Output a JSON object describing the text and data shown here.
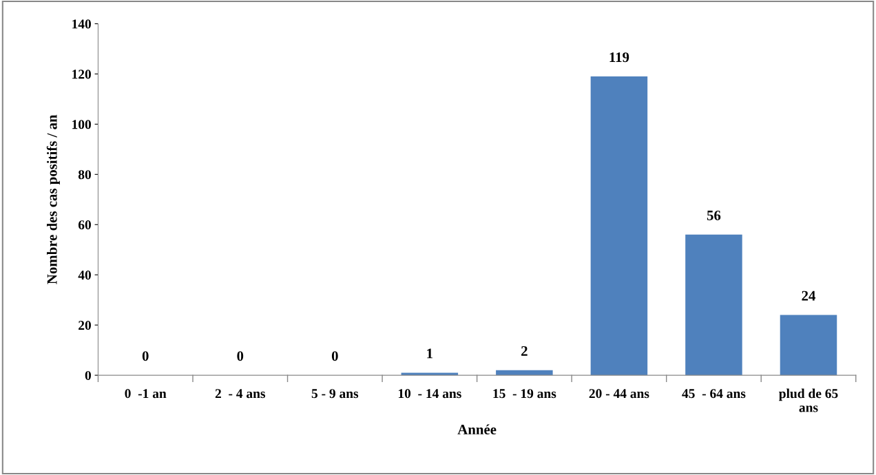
{
  "chart_data": {
    "type": "bar",
    "xlabel": "Année",
    "ylabel": "Nombre des cas positifs / an",
    "categories": [
      "0  -1 an",
      "2  - 4 ans",
      "5 - 9 ans",
      "10  - 14 ans",
      "15  - 19 ans",
      "20 - 44 ans",
      "45  - 64 ans",
      "plud de 65\nans"
    ],
    "values": [
      0,
      0,
      0,
      1,
      2,
      119,
      56,
      24
    ],
    "color": "#4f81bd",
    "ylim": [
      0,
      140
    ],
    "yticks": [
      0,
      20,
      40,
      60,
      80,
      100,
      120,
      140
    ],
    "data_labels": true,
    "grid": false,
    "legend": false
  }
}
